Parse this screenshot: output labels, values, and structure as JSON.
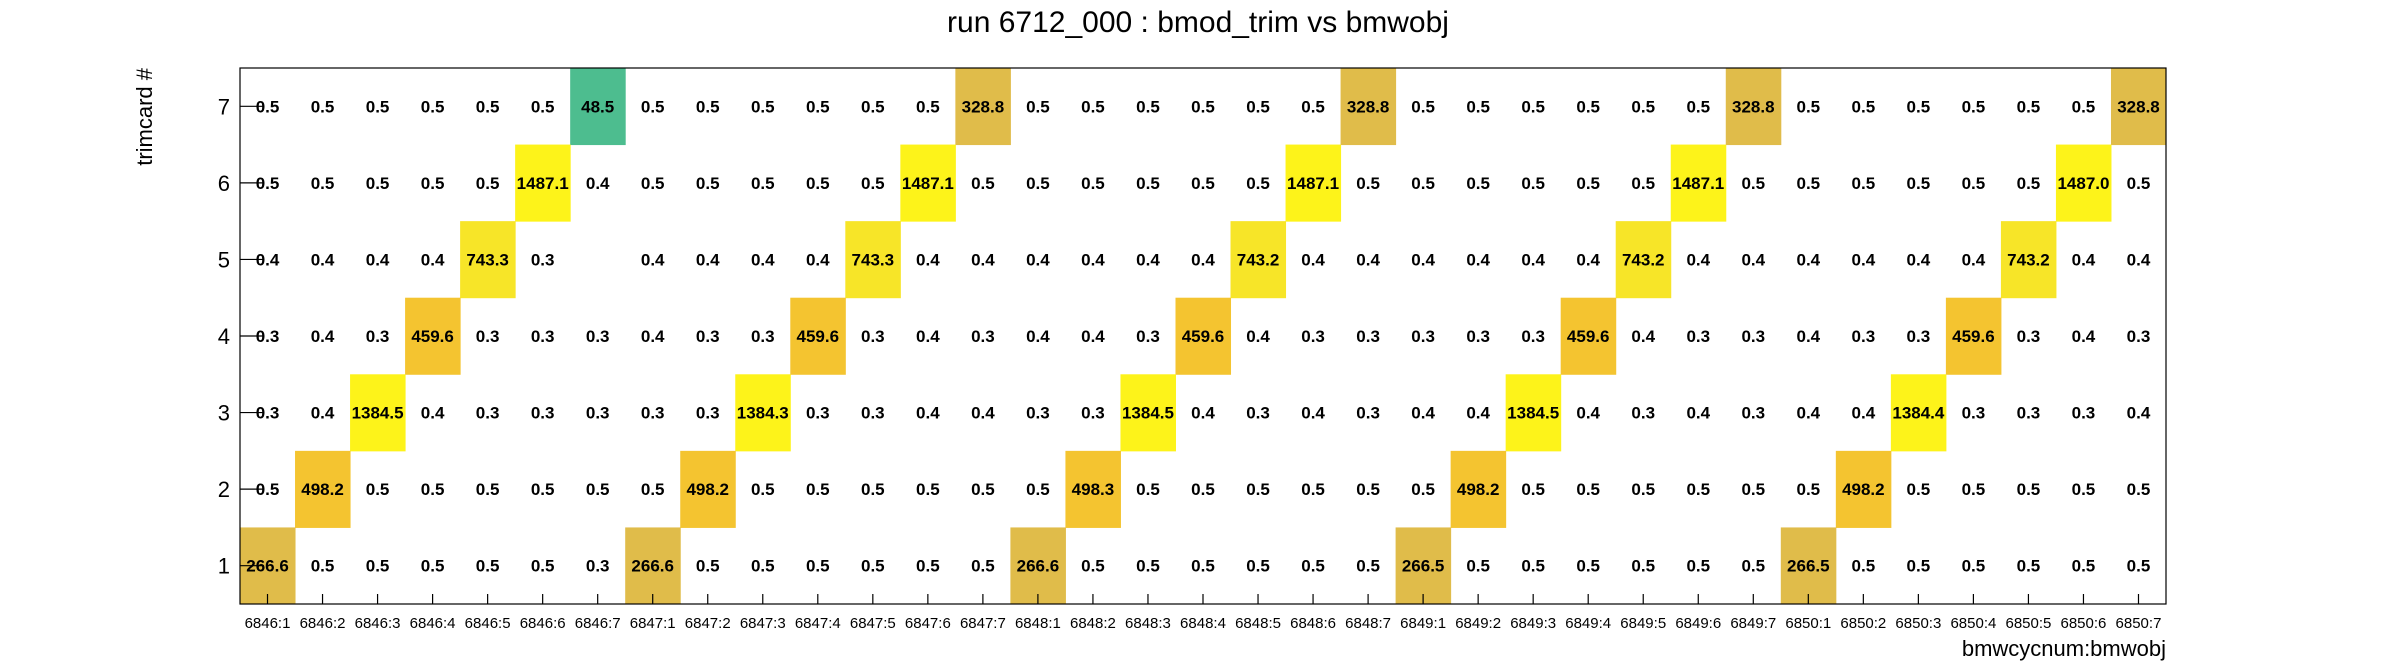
{
  "chart_data": {
    "type": "heatmap",
    "title": "run 6712_000 : bmod_trim vs bmwobj",
    "xlabel": "bmwcycnum:bmwobj",
    "ylabel": "trimcard #",
    "categories": [
      "6846:1",
      "6846:2",
      "6846:3",
      "6846:4",
      "6846:5",
      "6846:6",
      "6846:7",
      "6847:1",
      "6847:2",
      "6847:3",
      "6847:4",
      "6847:5",
      "6847:6",
      "6847:7",
      "6848:1",
      "6848:2",
      "6848:3",
      "6848:4",
      "6848:5",
      "6848:6",
      "6848:7",
      "6849:1",
      "6849:2",
      "6849:3",
      "6849:4",
      "6849:5",
      "6849:6",
      "6849:7",
      "6850:1",
      "6850:2",
      "6850:3",
      "6850:4",
      "6850:5",
      "6850:6",
      "6850:7"
    ],
    "y_categories": [
      "1",
      "2",
      "3",
      "4",
      "5",
      "6",
      "7"
    ],
    "grid": false,
    "palette": [
      "#e0bc4a",
      "#f4c430",
      "#f7e528",
      "#fdf31a",
      "#4dbd8f"
    ],
    "rows": [
      {
        "y": "7",
        "values": [
          "0.5",
          "0.5",
          "0.5",
          "0.5",
          "0.5",
          "0.5",
          "48.5",
          "0.5",
          "0.5",
          "0.5",
          "0.5",
          "0.5",
          "0.5",
          "328.8",
          "0.5",
          "0.5",
          "0.5",
          "0.5",
          "0.5",
          "0.5",
          "328.8",
          "0.5",
          "0.5",
          "0.5",
          "0.5",
          "0.5",
          "0.5",
          "328.8",
          "0.5",
          "0.5",
          "0.5",
          "0.5",
          "0.5",
          "0.5",
          "328.8"
        ]
      },
      {
        "y": "6",
        "values": [
          "0.5",
          "0.5",
          "0.5",
          "0.5",
          "0.5",
          "1487.1",
          "0.4",
          "0.5",
          "0.5",
          "0.5",
          "0.5",
          "0.5",
          "1487.1",
          "0.5",
          "0.5",
          "0.5",
          "0.5",
          "0.5",
          "0.5",
          "1487.1",
          "0.5",
          "0.5",
          "0.5",
          "0.5",
          "0.5",
          "0.5",
          "1487.1",
          "0.5",
          "0.5",
          "0.5",
          "0.5",
          "0.5",
          "0.5",
          "1487.0",
          "0.5"
        ]
      },
      {
        "y": "5",
        "values": [
          "0.4",
          "0.4",
          "0.4",
          "0.4",
          "743.3",
          "0.3",
          "",
          "0.4",
          "0.4",
          "0.4",
          "0.4",
          "743.3",
          "0.4",
          "0.4",
          "0.4",
          "0.4",
          "0.4",
          "0.4",
          "743.2",
          "0.4",
          "0.4",
          "0.4",
          "0.4",
          "0.4",
          "0.4",
          "743.2",
          "0.4",
          "0.4",
          "0.4",
          "0.4",
          "0.4",
          "0.4",
          "743.2",
          "0.4",
          "0.4"
        ]
      },
      {
        "y": "4",
        "values": [
          "0.3",
          "0.4",
          "0.3",
          "459.6",
          "0.3",
          "0.3",
          "0.3",
          "0.4",
          "0.3",
          "0.3",
          "459.6",
          "0.3",
          "0.4",
          "0.3",
          "0.4",
          "0.4",
          "0.3",
          "459.6",
          "0.4",
          "0.3",
          "0.3",
          "0.3",
          "0.3",
          "0.3",
          "459.6",
          "0.4",
          "0.3",
          "0.3",
          "0.4",
          "0.3",
          "0.3",
          "459.6",
          "0.3",
          "0.4",
          "0.3"
        ]
      },
      {
        "y": "3",
        "values": [
          "0.3",
          "0.4",
          "1384.5",
          "0.4",
          "0.3",
          "0.3",
          "0.3",
          "0.3",
          "0.3",
          "1384.3",
          "0.3",
          "0.3",
          "0.4",
          "0.4",
          "0.3",
          "0.3",
          "1384.5",
          "0.4",
          "0.3",
          "0.4",
          "0.3",
          "0.4",
          "0.4",
          "1384.5",
          "0.4",
          "0.3",
          "0.4",
          "0.3",
          "0.4",
          "0.4",
          "1384.4",
          "0.3",
          "0.3",
          "0.3",
          "0.4"
        ]
      },
      {
        "y": "2",
        "values": [
          "0.5",
          "498.2",
          "0.5",
          "0.5",
          "0.5",
          "0.5",
          "0.5",
          "0.5",
          "498.2",
          "0.5",
          "0.5",
          "0.5",
          "0.5",
          "0.5",
          "0.5",
          "498.3",
          "0.5",
          "0.5",
          "0.5",
          "0.5",
          "0.5",
          "0.5",
          "498.2",
          "0.5",
          "0.5",
          "0.5",
          "0.5",
          "0.5",
          "0.5",
          "498.2",
          "0.5",
          "0.5",
          "0.5",
          "0.5",
          "0.5"
        ]
      },
      {
        "y": "1",
        "values": [
          "266.6",
          "0.5",
          "0.5",
          "0.5",
          "0.5",
          "0.5",
          "0.3",
          "266.6",
          "0.5",
          "0.5",
          "0.5",
          "0.5",
          "0.5",
          "0.5",
          "266.6",
          "0.5",
          "0.5",
          "0.5",
          "0.5",
          "0.5",
          "0.5",
          "266.5",
          "0.5",
          "0.5",
          "0.5",
          "0.5",
          "0.5",
          "0.5",
          "266.5",
          "0.5",
          "0.5",
          "0.5",
          "0.5",
          "0.5",
          "0.5"
        ]
      }
    ]
  }
}
